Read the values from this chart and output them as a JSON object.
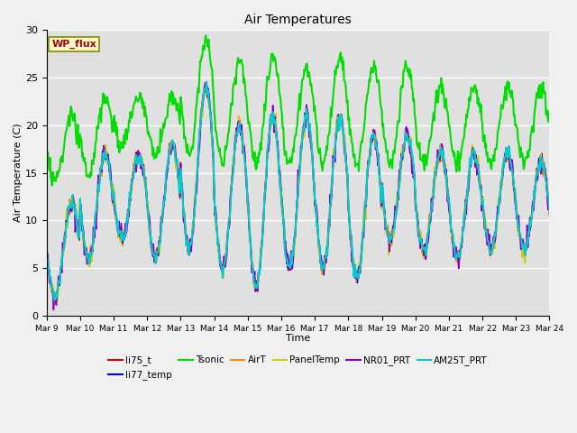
{
  "title": "Air Temperatures",
  "xlabel": "Time",
  "ylabel": "Air Temperature (C)",
  "ylim": [
    0,
    30
  ],
  "background_color": "#e0e0e0",
  "site_label": "WP_flux",
  "series_order": [
    "li75_t",
    "li77_temp",
    "Tsonic",
    "AirT",
    "PanelTemp",
    "NR01_PRT",
    "AM25T_PRT"
  ],
  "series_colors": {
    "li75_t": "#cc0000",
    "li77_temp": "#0000cc",
    "Tsonic": "#00dd00",
    "AirT": "#ff8800",
    "PanelTemp": "#cccc00",
    "NR01_PRT": "#8800cc",
    "AM25T_PRT": "#00cccc"
  },
  "series_lw": {
    "li75_t": 1.2,
    "li77_temp": 1.2,
    "Tsonic": 1.5,
    "AirT": 1.2,
    "PanelTemp": 1.2,
    "NR01_PRT": 1.2,
    "AM25T_PRT": 1.5
  },
  "xtick_labels": [
    "Mar 9",
    "Mar 10",
    "Mar 11",
    "Mar 12",
    "Mar 13",
    "Mar 14",
    "Mar 15",
    "Mar 16",
    "Mar 17",
    "Mar 18",
    "Mar 19",
    "Mar 20",
    "Mar 21",
    "Mar 22",
    "Mar 23",
    "Mar 24"
  ],
  "yticks": [
    0,
    5,
    10,
    15,
    20,
    25,
    30
  ]
}
